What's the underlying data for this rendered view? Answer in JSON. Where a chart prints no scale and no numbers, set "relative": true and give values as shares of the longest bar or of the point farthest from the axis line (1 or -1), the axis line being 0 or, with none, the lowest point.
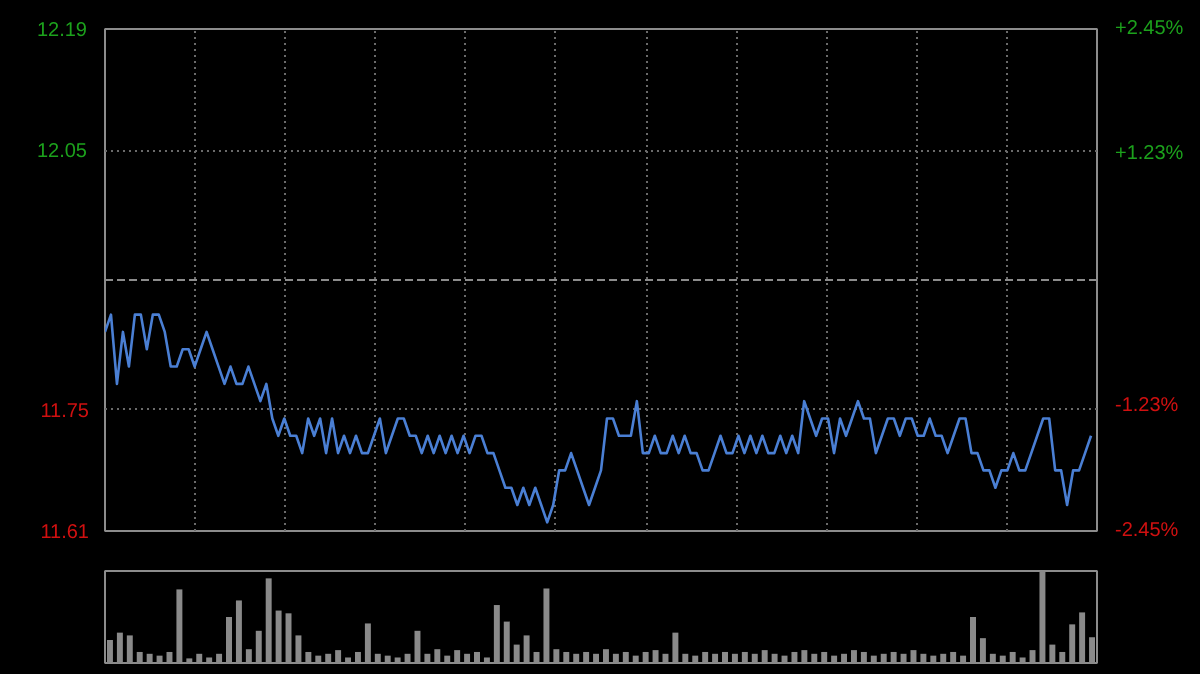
{
  "chart_data": [
    {
      "type": "line",
      "categories": [
        null,
        null,
        null,
        null,
        null,
        null,
        null,
        null,
        null,
        null,
        null,
        null,
        null,
        null,
        null,
        null,
        null,
        null,
        null,
        null,
        null,
        null,
        null,
        null,
        null,
        null,
        null,
        null,
        null,
        null,
        null,
        null,
        null,
        null,
        null,
        null,
        null,
        null,
        null,
        null,
        null,
        null,
        null,
        null,
        null,
        null,
        null,
        null,
        null,
        null,
        null,
        null,
        null,
        null,
        null,
        null,
        null,
        null,
        null,
        null,
        null,
        null,
        null,
        null,
        null,
        null,
        null,
        null,
        null,
        null,
        null,
        null,
        null,
        null,
        null,
        null,
        null,
        null,
        null,
        null,
        null,
        null,
        null,
        null,
        null,
        null,
        null,
        null,
        null,
        null,
        null,
        null,
        null,
        null,
        null,
        null,
        null,
        null,
        null,
        null,
        null,
        null,
        null,
        null,
        null,
        null,
        null,
        null,
        null,
        null,
        null,
        null,
        null,
        null,
        null,
        null,
        null,
        null,
        null,
        null,
        null,
        null,
        null,
        null,
        null,
        null,
        null,
        null,
        null,
        null,
        null,
        null,
        null,
        null,
        null,
        null,
        null,
        null,
        null,
        null,
        null,
        null,
        null,
        null,
        null,
        null,
        null,
        null,
        null,
        null,
        null,
        null,
        null,
        null,
        null,
        null,
        null,
        null,
        null,
        null,
        null,
        null,
        null,
        null,
        null,
        null
      ],
      "series": [
        {
          "color": "#4a7fd4",
          "values": [
            11.84,
            11.86,
            11.78,
            11.84,
            11.8,
            11.86,
            11.86,
            11.82,
            11.86,
            11.86,
            11.84,
            11.8,
            11.8,
            11.82,
            11.82,
            11.8,
            11.82,
            11.84,
            11.82,
            11.8,
            11.78,
            11.8,
            11.78,
            11.78,
            11.8,
            11.78,
            11.76,
            11.78,
            11.74,
            11.72,
            11.74,
            11.72,
            11.72,
            11.7,
            11.74,
            11.72,
            11.74,
            11.7,
            11.74,
            11.7,
            11.72,
            11.7,
            11.72,
            11.7,
            11.7,
            11.72,
            11.74,
            11.7,
            11.72,
            11.74,
            11.74,
            11.72,
            11.72,
            11.7,
            11.72,
            11.7,
            11.72,
            11.7,
            11.72,
            11.7,
            11.72,
            11.7,
            11.72,
            11.72,
            11.7,
            11.7,
            11.68,
            11.66,
            11.66,
            11.64,
            11.66,
            11.64,
            11.66,
            11.64,
            11.62,
            11.64,
            11.68,
            11.68,
            11.7,
            11.68,
            11.66,
            11.64,
            11.66,
            11.68,
            11.74,
            11.74,
            11.72,
            11.72,
            11.72,
            11.76,
            11.7,
            11.7,
            11.72,
            11.7,
            11.7,
            11.72,
            11.7,
            11.72,
            11.7,
            11.7,
            11.68,
            11.68,
            11.7,
            11.72,
            11.7,
            11.7,
            11.72,
            11.7,
            11.72,
            11.7,
            11.72,
            11.7,
            11.7,
            11.72,
            11.7,
            11.72,
            11.7,
            11.76,
            11.74,
            11.72,
            11.74,
            11.74,
            11.7,
            11.74,
            11.72,
            11.74,
            11.76,
            11.74,
            11.74,
            11.7,
            11.72,
            11.74,
            11.74,
            11.72,
            11.74,
            11.74,
            11.72,
            11.72,
            11.74,
            11.72,
            11.72,
            11.7,
            11.72,
            11.74,
            11.74,
            11.7,
            11.7,
            11.68,
            11.68,
            11.66,
            11.68,
            11.68,
            11.7,
            11.68,
            11.68,
            11.7,
            11.72,
            11.74,
            11.74,
            11.68,
            11.68,
            11.64,
            11.68,
            11.68,
            11.7,
            11.72
          ]
        }
      ],
      "ylim": [
        11.61,
        12.19
      ],
      "yticks": [
        12.19,
        12.05,
        11.75,
        11.61
      ],
      "y2lim": [
        -2.45,
        2.45
      ],
      "y2ticks": [
        {
          "value": 2.45,
          "label": "+2.45%"
        },
        {
          "value": 1.23,
          "label": "+1.23%"
        },
        {
          "value": -1.23,
          "label": "-1.23%"
        },
        {
          "value": -2.45,
          "label": "-2.45%"
        }
      ],
      "ref_lines": [
        {
          "axis": "y",
          "value": 11.9,
          "color": "#8c8c8c",
          "line_style": "dashed"
        }
      ],
      "grid": true,
      "tick_labels": "y"
    },
    {
      "type": "bar",
      "relative": true,
      "color": "#8a8a8a",
      "categories": [
        null,
        null,
        null,
        null,
        null,
        null,
        null,
        null,
        null,
        null,
        null,
        null,
        null,
        null,
        null,
        null,
        null,
        null,
        null,
        null,
        null,
        null,
        null,
        null,
        null,
        null,
        null,
        null,
        null,
        null,
        null,
        null,
        null,
        null,
        null,
        null,
        null,
        null,
        null,
        null,
        null,
        null,
        null,
        null,
        null,
        null,
        null,
        null,
        null,
        null,
        null,
        null,
        null,
        null,
        null,
        null,
        null,
        null,
        null,
        null,
        null,
        null,
        null,
        null,
        null,
        null,
        null,
        null,
        null,
        null,
        null,
        null,
        null,
        null,
        null,
        null,
        null,
        null,
        null,
        null,
        null,
        null,
        null,
        null,
        null,
        null,
        null,
        null,
        null,
        null,
        null,
        null,
        null,
        null,
        null,
        null,
        null,
        null,
        null,
        null
      ],
      "values": [
        0.25,
        0.33,
        0.3,
        0.12,
        0.1,
        0.08,
        0.12,
        0.8,
        0.05,
        0.1,
        0.06,
        0.1,
        0.5,
        0.68,
        0.15,
        0.35,
        0.92,
        0.57,
        0.54,
        0.3,
        0.12,
        0.08,
        0.1,
        0.14,
        0.06,
        0.12,
        0.43,
        0.1,
        0.08,
        0.06,
        0.1,
        0.35,
        0.1,
        0.15,
        0.08,
        0.14,
        0.1,
        0.12,
        0.06,
        0.63,
        0.45,
        0.2,
        0.3,
        0.12,
        0.81,
        0.15,
        0.12,
        0.1,
        0.12,
        0.1,
        0.15,
        0.1,
        0.12,
        0.08,
        0.12,
        0.14,
        0.1,
        0.33,
        0.1,
        0.08,
        0.12,
        0.1,
        0.12,
        0.1,
        0.12,
        0.1,
        0.14,
        0.1,
        0.08,
        0.12,
        0.14,
        0.1,
        0.12,
        0.08,
        0.1,
        0.14,
        0.12,
        0.08,
        0.1,
        0.12,
        0.1,
        0.14,
        0.1,
        0.08,
        0.1,
        0.12,
        0.08,
        0.5,
        0.27,
        0.1,
        0.08,
        0.12,
        0.06,
        0.14,
        1.0,
        0.2,
        0.12,
        0.42,
        0.55,
        0.28
      ]
    }
  ]
}
